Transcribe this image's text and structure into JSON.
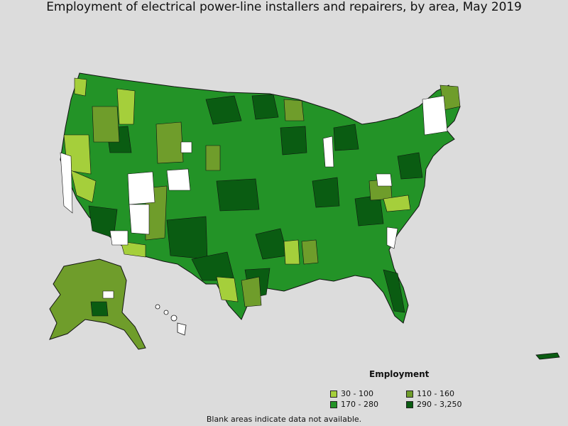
{
  "title": "Employment of electrical power-line installers and repairers, by area, May 2019",
  "legend": {
    "title": "Employment",
    "items": [
      {
        "label": "30 - 100",
        "color": "#a5cf3b"
      },
      {
        "label": "110 - 160",
        "color": "#6f9d2b"
      },
      {
        "label": "170 - 280",
        "color": "#239327"
      },
      {
        "label": "290 - 3,250",
        "color": "#0a5c12"
      }
    ]
  },
  "footnote": "Blank areas indicate data not available.",
  "colors": {
    "background": "#dcdcdc",
    "no_data": "#ffffff",
    "border": "#111111"
  }
}
